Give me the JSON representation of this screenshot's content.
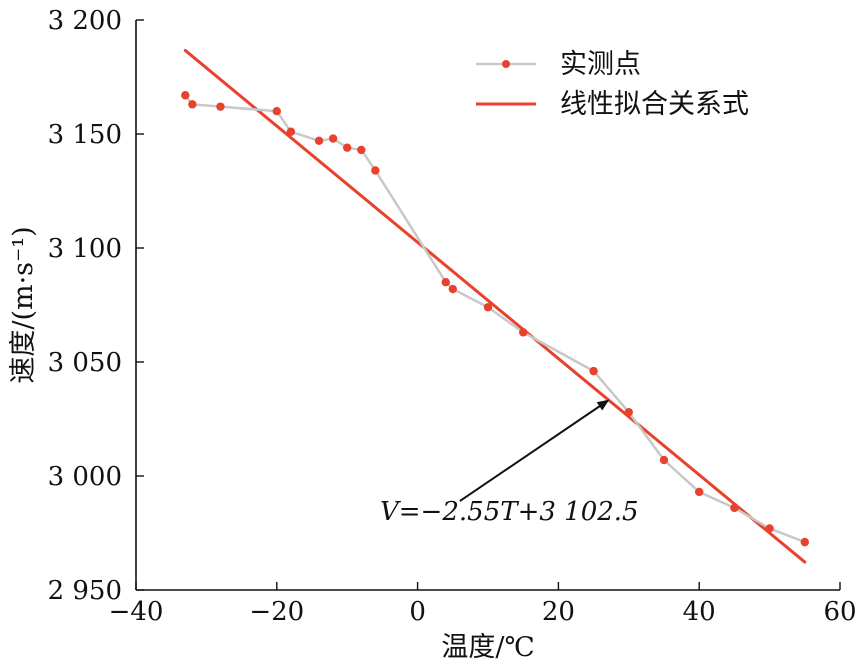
{
  "chart_data": {
    "type": "line",
    "title": "",
    "xlabel": "温度/℃",
    "ylabel": "速度/(m·s⁻¹)",
    "xlim": [
      -40,
      60
    ],
    "ylim": [
      2950,
      3200
    ],
    "xticks": [
      -40,
      -20,
      0,
      20,
      40,
      60
    ],
    "yticks": [
      2950,
      3000,
      3050,
      3100,
      3150,
      3200
    ],
    "xtick_labels": [
      "−40",
      "−20",
      "0",
      "20",
      "40",
      "60"
    ],
    "ytick_labels": [
      "2 950",
      "3 000",
      "3 050",
      "3 100",
      "3 150",
      "3 200"
    ],
    "grid": false,
    "legend_position": "top-right",
    "series": [
      {
        "name": "实测点",
        "kind": "line-markers",
        "color": "#c8c8c8",
        "marker_color": "#e8412c",
        "x": [
          -33,
          -32,
          -28,
          -20,
          -18,
          -14,
          -12,
          -10,
          -8,
          -6,
          4,
          5,
          10,
          15,
          25,
          30,
          35,
          40,
          45,
          50,
          55
        ],
        "y": [
          3167,
          3163,
          3162,
          3160,
          3151,
          3147,
          3148,
          3144,
          3143,
          3134,
          3085,
          3082,
          3074,
          3063,
          3046,
          3028,
          3007,
          2993,
          2986,
          2977,
          2971
        ]
      },
      {
        "name": "线性拟合关系式",
        "kind": "line",
        "color": "#e8412c",
        "x": [
          -33,
          55
        ],
        "y": [
          3186.65,
          2962.25
        ]
      }
    ],
    "annotations": [
      {
        "text": "V=−2.55T+3 102.5",
        "arrow_from": [
          6,
          2989
        ],
        "arrow_to": [
          27,
          3033
        ]
      }
    ]
  }
}
